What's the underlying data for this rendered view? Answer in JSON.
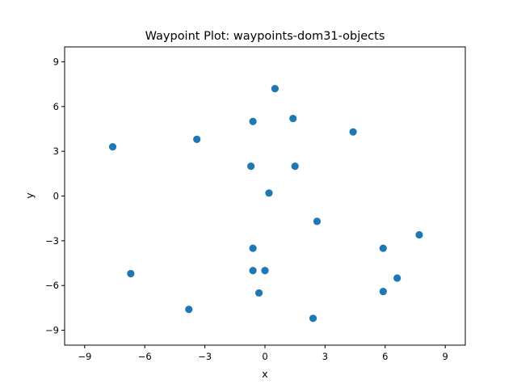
{
  "chart_data": {
    "type": "scatter",
    "title": "Waypoint Plot: waypoints-dom31-objects",
    "xlabel": "x",
    "ylabel": "y",
    "xlim": [
      -10,
      10
    ],
    "ylim": [
      -10,
      10
    ],
    "xticks": [
      -9,
      -6,
      -3,
      0,
      3,
      6,
      9
    ],
    "yticks": [
      -9,
      -6,
      -3,
      0,
      3,
      6,
      9
    ],
    "grid": false,
    "marker_color": "#1f77b4",
    "points": [
      {
        "x": 0.5,
        "y": 7.2
      },
      {
        "x": 1.4,
        "y": 5.2
      },
      {
        "x": -0.6,
        "y": 5.0
      },
      {
        "x": 4.4,
        "y": 4.3
      },
      {
        "x": -3.4,
        "y": 3.8
      },
      {
        "x": -7.6,
        "y": 3.3
      },
      {
        "x": -0.7,
        "y": 2.0
      },
      {
        "x": 1.5,
        "y": 2.0
      },
      {
        "x": 0.2,
        "y": 0.2
      },
      {
        "x": 2.6,
        "y": -1.7
      },
      {
        "x": 7.7,
        "y": -2.6
      },
      {
        "x": 5.9,
        "y": -3.5
      },
      {
        "x": -0.6,
        "y": -3.5
      },
      {
        "x": -0.6,
        "y": -5.0
      },
      {
        "x": 0.0,
        "y": -5.0
      },
      {
        "x": -6.7,
        "y": -5.2
      },
      {
        "x": 6.6,
        "y": -5.5
      },
      {
        "x": 5.9,
        "y": -6.4
      },
      {
        "x": -0.3,
        "y": -6.5
      },
      {
        "x": -3.8,
        "y": -7.6
      },
      {
        "x": 2.4,
        "y": -8.2
      }
    ]
  }
}
